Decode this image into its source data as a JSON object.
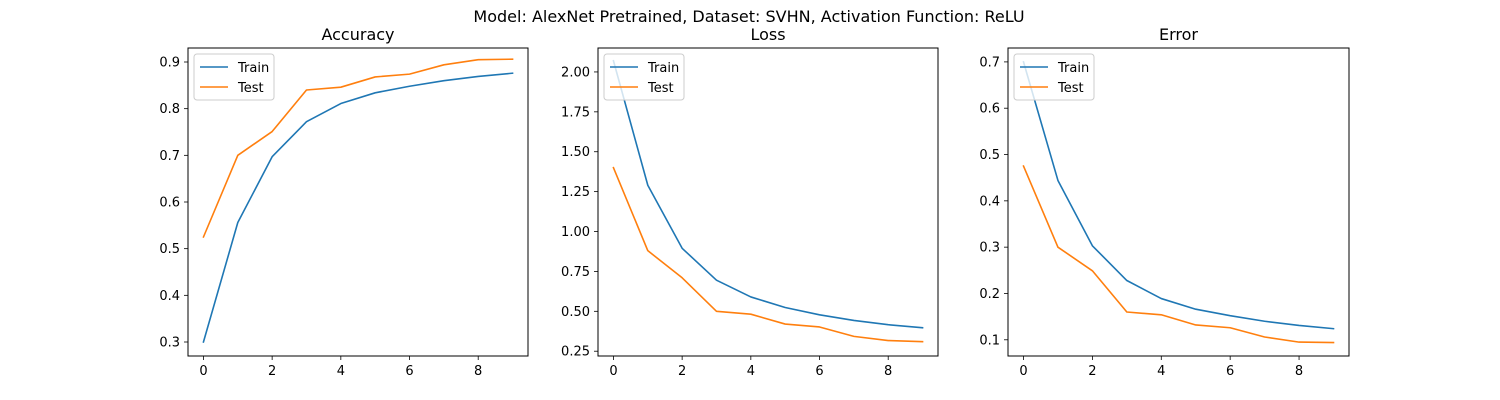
{
  "suptitle": "Model: AlexNet Pretrained, Dataset: SVHN, Activation Function: ReLU",
  "colors": {
    "train": "#1f77b4",
    "test": "#ff7f0e"
  },
  "chart_data": [
    {
      "type": "line",
      "title": "Accuracy",
      "xlabel": "",
      "ylabel": "",
      "x": [
        0,
        1,
        2,
        3,
        4,
        5,
        6,
        7,
        8,
        9
      ],
      "xlim": [
        -0.45,
        9.45
      ],
      "ylim": [
        0.27,
        0.93
      ],
      "xticks": [
        0,
        2,
        4,
        6,
        8
      ],
      "yticks": [
        0.3,
        0.4,
        0.5,
        0.6,
        0.7,
        0.8,
        0.9
      ],
      "ytick_labels": [
        "0.3",
        "0.4",
        "0.5",
        "0.6",
        "0.7",
        "0.8",
        "0.9"
      ],
      "legend": "upper-left",
      "series": [
        {
          "name": "Train",
          "color": "#1f77b4",
          "values": [
            0.3,
            0.556,
            0.697,
            0.772,
            0.811,
            0.834,
            0.848,
            0.86,
            0.869,
            0.876
          ]
        },
        {
          "name": "Test",
          "color": "#ff7f0e",
          "values": [
            0.525,
            0.7,
            0.751,
            0.84,
            0.846,
            0.868,
            0.874,
            0.894,
            0.905,
            0.906
          ]
        }
      ]
    },
    {
      "type": "line",
      "title": "Loss",
      "xlabel": "",
      "ylabel": "",
      "x": [
        0,
        1,
        2,
        3,
        4,
        5,
        6,
        7,
        8,
        9
      ],
      "xlim": [
        -0.45,
        9.45
      ],
      "ylim": [
        0.22,
        2.15
      ],
      "xticks": [
        0,
        2,
        4,
        6,
        8
      ],
      "yticks": [
        0.25,
        0.5,
        0.75,
        1.0,
        1.25,
        1.5,
        1.75,
        2.0
      ],
      "ytick_labels": [
        "0.25",
        "0.50",
        "0.75",
        "1.00",
        "1.25",
        "1.50",
        "1.75",
        "2.00"
      ],
      "legend": "upper-left",
      "series": [
        {
          "name": "Train",
          "color": "#1f77b4",
          "values": [
            2.07,
            1.29,
            0.895,
            0.695,
            0.59,
            0.524,
            0.478,
            0.443,
            0.416,
            0.397
          ]
        },
        {
          "name": "Test",
          "color": "#ff7f0e",
          "values": [
            1.4,
            0.88,
            0.71,
            0.5,
            0.482,
            0.42,
            0.402,
            0.343,
            0.317,
            0.31
          ]
        }
      ]
    },
    {
      "type": "line",
      "title": "Error",
      "xlabel": "",
      "ylabel": "",
      "x": [
        0,
        1,
        2,
        3,
        4,
        5,
        6,
        7,
        8,
        9
      ],
      "xlim": [
        -0.45,
        9.45
      ],
      "ylim": [
        0.065,
        0.73
      ],
      "xticks": [
        0,
        2,
        4,
        6,
        8
      ],
      "yticks": [
        0.1,
        0.2,
        0.3,
        0.4,
        0.5,
        0.6,
        0.7
      ],
      "ytick_labels": [
        "0.1",
        "0.2",
        "0.3",
        "0.4",
        "0.5",
        "0.6",
        "0.7"
      ],
      "legend": "upper-left",
      "series": [
        {
          "name": "Train",
          "color": "#1f77b4",
          "values": [
            0.7,
            0.444,
            0.303,
            0.228,
            0.189,
            0.166,
            0.152,
            0.14,
            0.131,
            0.124
          ]
        },
        {
          "name": "Test",
          "color": "#ff7f0e",
          "values": [
            0.475,
            0.3,
            0.249,
            0.16,
            0.154,
            0.132,
            0.126,
            0.106,
            0.095,
            0.094
          ]
        }
      ]
    }
  ]
}
